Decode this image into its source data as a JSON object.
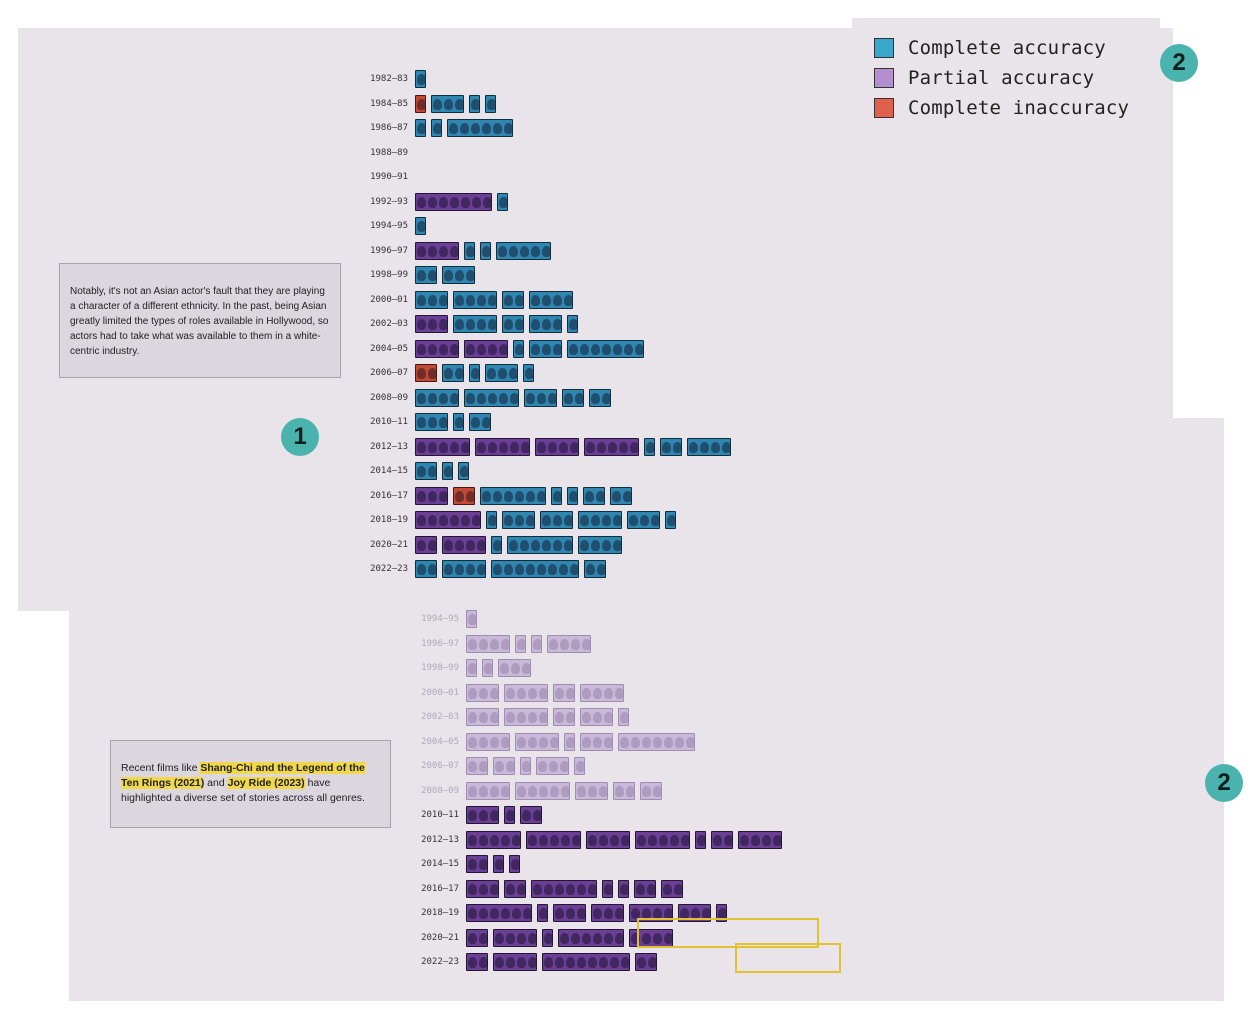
{
  "legend": {
    "items": [
      {
        "label": "Complete accuracy",
        "color": "#3aa7cc"
      },
      {
        "label": "Partial accuracy",
        "color": "#b48fd0"
      },
      {
        "label": "Complete inaccuracy",
        "color": "#e0604e"
      }
    ]
  },
  "badges": {
    "one": "1",
    "two_top": "2",
    "two_bottom": "2"
  },
  "notes": {
    "first": "Notably, it's not an Asian actor's fault that they are playing a character of a different ethnicity. In the past, being Asian greatly limited the types of roles available in Hollywood, so actors had to take what was available to them in a white-centric industry.",
    "second_pre": "Recent films like ",
    "second_hl1": "Shang-Chi and the Legend of the Ten Rings (2021)",
    "second_mid": " and ",
    "second_hl2": "Joy Ride (2023)",
    "second_post": " have highlighted a diverse set of stories across all genres."
  },
  "colors": {
    "complete": "#2f86b0",
    "partial": "#6b3f96",
    "inaccurate": "#c24a34",
    "faded": "#c9b8d8",
    "panel": "#e8e4ea"
  },
  "top_chart": {
    "periods": [
      "1982–83",
      "1984–85",
      "1986–87",
      "1988–89",
      "1990–91",
      "1992–93",
      "1994–95",
      "1996–97",
      "1998–99",
      "2000–01",
      "2002–03",
      "2004–05",
      "2006–07",
      "2008–09",
      "2010–11",
      "2012–13",
      "2014–15",
      "2016–17",
      "2018–19",
      "2020–21",
      "2022–23"
    ]
  },
  "bottom_chart": {
    "periods": [
      "1994–95",
      "1996–97",
      "1998–99",
      "2000–01",
      "2002–03",
      "2004–05",
      "2006–07",
      "2008–09",
      "2010–11",
      "2012–13",
      "2014–15",
      "2016–17",
      "2018–19",
      "2020–21",
      "2022–23"
    ]
  }
}
